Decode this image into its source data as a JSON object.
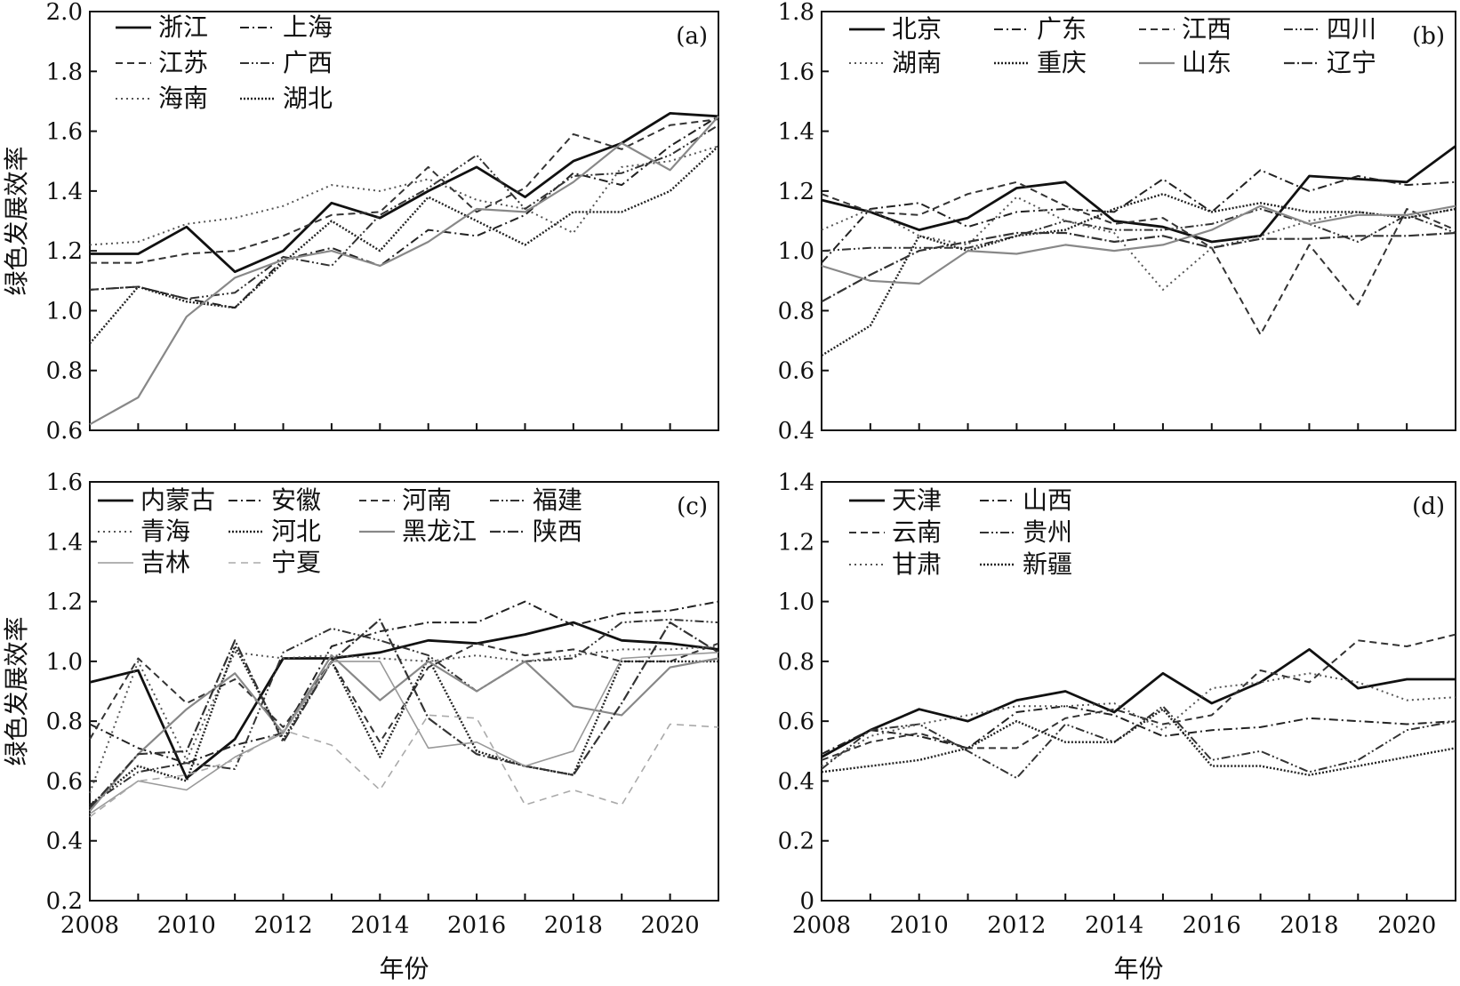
{
  "chart_data": [
    {
      "panel": "(a)",
      "type": "line",
      "ylabel": "绿色发展效率",
      "xlabel": "",
      "ylim": [
        0.6,
        2.0
      ],
      "yticks": [
        "0.6",
        "0.8",
        "1.0",
        "1.2",
        "1.4",
        "1.6",
        "1.8",
        "2.0"
      ],
      "xlim": [
        2008,
        2021
      ],
      "xticks": [],
      "x": [
        2008,
        2009,
        2010,
        2011,
        2012,
        2013,
        2014,
        2015,
        2016,
        2017,
        2018,
        2019,
        2020,
        2021
      ],
      "series": [
        {
          "name": "浙江",
          "values": [
            1.19,
            1.19,
            1.28,
            1.13,
            1.2,
            1.36,
            1.31,
            1.4,
            1.48,
            1.38,
            1.5,
            1.56,
            1.66,
            1.65
          ]
        },
        {
          "name": "上海",
          "values": [
            1.07,
            1.08,
            1.04,
            1.01,
            1.17,
            1.21,
            1.15,
            1.27,
            1.25,
            1.32,
            1.46,
            1.42,
            1.55,
            1.65
          ]
        },
        {
          "name": "江苏",
          "values": [
            1.16,
            1.16,
            1.19,
            1.2,
            1.25,
            1.32,
            1.33,
            1.48,
            1.33,
            1.41,
            1.59,
            1.54,
            1.62,
            1.64
          ]
        },
        {
          "name": "广西",
          "values": [
            1.07,
            1.08,
            1.04,
            1.06,
            1.18,
            1.15,
            1.32,
            1.41,
            1.52,
            1.34,
            1.45,
            1.46,
            1.52,
            1.62
          ]
        },
        {
          "name": "海南",
          "values": [
            1.22,
            1.23,
            1.29,
            1.31,
            1.35,
            1.42,
            1.4,
            1.44,
            1.37,
            1.34,
            1.26,
            1.48,
            1.5,
            1.55
          ]
        },
        {
          "name": "湖北",
          "values": [
            0.89,
            1.08,
            1.03,
            1.01,
            1.16,
            1.3,
            1.2,
            1.38,
            1.3,
            1.22,
            1.33,
            1.33,
            1.4,
            1.55
          ]
        },
        {
          "name": "",
          "values": [
            0.62,
            0.71,
            0.98,
            1.11,
            1.17,
            1.2,
            1.15,
            1.23,
            1.34,
            1.33,
            1.43,
            1.56,
            1.47,
            1.65
          ]
        }
      ]
    },
    {
      "panel": "(b)",
      "type": "line",
      "ylabel": "",
      "xlabel": "",
      "ylim": [
        0.4,
        1.8
      ],
      "yticks": [
        "0.4",
        "0.6",
        "0.8",
        "1.0",
        "1.2",
        "1.4",
        "1.6",
        "1.8"
      ],
      "xlim": [
        2008,
        2021
      ],
      "xticks": [],
      "x": [
        2008,
        2009,
        2010,
        2011,
        2012,
        2013,
        2014,
        2015,
        2016,
        2017,
        2018,
        2019,
        2020,
        2021
      ],
      "series": [
        {
          "name": "北京",
          "values": [
            1.17,
            1.13,
            1.07,
            1.11,
            1.21,
            1.23,
            1.1,
            1.08,
            1.03,
            1.05,
            1.25,
            1.24,
            1.23,
            1.35
          ]
        },
        {
          "name": "广东",
          "values": [
            0.96,
            1.14,
            1.16,
            1.08,
            1.13,
            1.14,
            1.13,
            1.24,
            1.13,
            1.27,
            1.2,
            1.25,
            1.22,
            1.23
          ]
        },
        {
          "name": "江西",
          "values": [
            1.19,
            1.13,
            1.12,
            1.19,
            1.23,
            1.15,
            1.09,
            1.11,
            1.01,
            0.72,
            1.02,
            0.82,
            1.14,
            1.07
          ]
        },
        {
          "name": "四川",
          "values": [
            1.0,
            1.01,
            1.01,
            1.01,
            1.05,
            1.1,
            1.07,
            1.07,
            1.09,
            1.14,
            1.09,
            1.03,
            1.12,
            1.06
          ]
        },
        {
          "name": "湖南",
          "values": [
            1.07,
            1.14,
            1.05,
            1.02,
            1.18,
            1.1,
            1.06,
            0.87,
            1.01,
            1.05,
            1.1,
            1.13,
            1.11,
            1.14
          ]
        },
        {
          "name": "重庆",
          "values": [
            0.65,
            0.75,
            1.05,
            1.0,
            1.05,
            1.07,
            1.14,
            1.19,
            1.13,
            1.16,
            1.13,
            1.13,
            1.11,
            1.14
          ]
        },
        {
          "name": "山东",
          "values": [
            0.95,
            0.9,
            0.89,
            1.0,
            0.99,
            1.02,
            1.0,
            1.02,
            1.07,
            1.15,
            1.09,
            1.12,
            1.12,
            1.15
          ]
        },
        {
          "name": "辽宁",
          "values": [
            0.83,
            0.92,
            1.0,
            1.03,
            1.06,
            1.06,
            1.03,
            1.05,
            1.01,
            1.04,
            1.04,
            1.05,
            1.05,
            1.06
          ]
        }
      ]
    },
    {
      "panel": "(c)",
      "type": "line",
      "ylabel": "绿色发展效率",
      "xlabel": "年份",
      "ylim": [
        0.2,
        1.6
      ],
      "yticks": [
        "0.2",
        "0.4",
        "0.6",
        "0.8",
        "1.0",
        "1.2",
        "1.4",
        "1.6"
      ],
      "xlim": [
        2008,
        2021
      ],
      "xticks": [
        "2008",
        "2010",
        "2012",
        "2014",
        "2016",
        "2018",
        "2020"
      ],
      "x": [
        2008,
        2009,
        2010,
        2011,
        2012,
        2013,
        2014,
        2015,
        2016,
        2017,
        2018,
        2019,
        2020,
        2021
      ],
      "series": [
        {
          "name": "内蒙古",
          "values": [
            0.93,
            0.97,
            0.61,
            0.74,
            1.01,
            1.01,
            1.03,
            1.07,
            1.06,
            1.09,
            1.13,
            1.07,
            1.06,
            1.04
          ]
        },
        {
          "name": "安徽",
          "values": [
            0.79,
            0.71,
            0.66,
            0.72,
            0.76,
            1.05,
            1.1,
            1.13,
            1.13,
            1.2,
            1.12,
            1.16,
            1.17,
            1.2
          ]
        },
        {
          "name": "河南",
          "values": [
            0.74,
            1.01,
            0.86,
            0.94,
            0.78,
            1.0,
            0.73,
            0.98,
            1.06,
            1.02,
            1.04,
            1.0,
            1.0,
            1.06
          ]
        },
        {
          "name": "福建",
          "values": [
            0.52,
            0.63,
            0.66,
            0.64,
            1.03,
            1.11,
            1.07,
            1.02,
            0.9,
            1.0,
            1.01,
            1.13,
            1.14,
            1.13
          ]
        },
        {
          "name": "青海",
          "values": [
            0.56,
            1.0,
            0.67,
            1.03,
            1.01,
            1.02,
            1.01,
            1.0,
            1.02,
            1.0,
            1.02,
            1.04,
            1.04,
            1.05
          ]
        },
        {
          "name": "河北",
          "values": [
            0.52,
            0.65,
            0.6,
            1.05,
            0.74,
            1.0,
            0.68,
            1.01,
            0.7,
            0.65,
            0.62,
            1.0,
            1.0,
            1.0
          ]
        },
        {
          "name": "黑龙江",
          "values": [
            0.5,
            0.69,
            0.84,
            0.96,
            0.76,
            1.02,
            0.87,
            1.0,
            0.9,
            1.0,
            0.85,
            0.82,
            0.98,
            1.01
          ]
        },
        {
          "name": "陕西",
          "values": [
            0.51,
            0.69,
            0.7,
            1.07,
            0.73,
            1.0,
            1.14,
            0.81,
            0.69,
            0.65,
            0.62,
            0.86,
            1.13,
            1.03
          ]
        },
        {
          "name": "吉林",
          "values": [
            0.49,
            0.6,
            0.57,
            0.68,
            0.76,
            1.0,
            1.0,
            0.71,
            0.73,
            0.65,
            0.7,
            1.01,
            1.02,
            1.03
          ]
        },
        {
          "name": "宁夏",
          "values": [
            0.48,
            0.6,
            0.62,
            0.67,
            0.77,
            0.72,
            0.57,
            0.82,
            0.81,
            0.52,
            0.57,
            0.52,
            0.79,
            0.78
          ]
        }
      ]
    },
    {
      "panel": "(d)",
      "type": "line",
      "ylabel": "",
      "xlabel": "年份",
      "ylim": [
        0.0,
        1.4
      ],
      "yticks": [
        "0",
        "0.2",
        "0.4",
        "0.6",
        "0.8",
        "1.0",
        "1.2",
        "1.4"
      ],
      "xlim": [
        2008,
        2021
      ],
      "xticks": [
        "2008",
        "2010",
        "2012",
        "2014",
        "2016",
        "2018",
        "2020"
      ],
      "x": [
        2008,
        2009,
        2010,
        2011,
        2012,
        2013,
        2014,
        2015,
        2016,
        2017,
        2018,
        2019,
        2020,
        2021
      ],
      "series": [
        {
          "name": "天津",
          "values": [
            0.48,
            0.57,
            0.64,
            0.6,
            0.67,
            0.7,
            0.63,
            0.76,
            0.66,
            0.73,
            0.84,
            0.71,
            0.74,
            0.74
          ]
        },
        {
          "name": "山西",
          "values": [
            0.49,
            0.57,
            0.55,
            0.51,
            0.63,
            0.65,
            0.62,
            0.55,
            0.57,
            0.58,
            0.61,
            0.6,
            0.59,
            0.6
          ]
        },
        {
          "name": "云南",
          "values": [
            0.47,
            0.53,
            0.56,
            0.51,
            0.51,
            0.61,
            0.64,
            0.59,
            0.62,
            0.77,
            0.73,
            0.87,
            0.85,
            0.89
          ]
        },
        {
          "name": "贵州",
          "values": [
            0.44,
            0.57,
            0.59,
            0.5,
            0.41,
            0.59,
            0.53,
            0.65,
            0.47,
            0.5,
            0.43,
            0.47,
            0.57,
            0.6
          ]
        },
        {
          "name": "甘肃",
          "values": [
            0.45,
            0.55,
            0.59,
            0.62,
            0.65,
            0.65,
            0.66,
            0.57,
            0.71,
            0.73,
            0.76,
            0.73,
            0.67,
            0.68
          ]
        },
        {
          "name": "新疆",
          "values": [
            0.43,
            0.45,
            0.47,
            0.51,
            0.6,
            0.53,
            0.53,
            0.64,
            0.45,
            0.45,
            0.42,
            0.45,
            0.48,
            0.51
          ]
        }
      ]
    }
  ]
}
